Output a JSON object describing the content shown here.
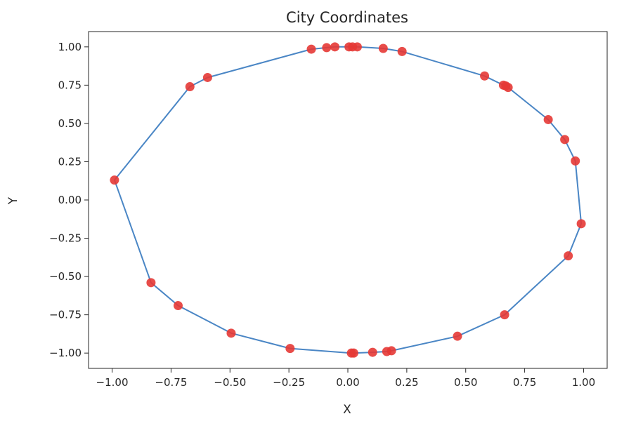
{
  "chart_data": {
    "type": "scatter",
    "title": "City Coordinates",
    "xlabel": "X",
    "ylabel": "Y",
    "xlim": [
      -1.1,
      1.1
    ],
    "ylim": [
      -1.1,
      1.1
    ],
    "xticks": [
      -1.0,
      -0.75,
      -0.5,
      -0.25,
      0.0,
      0.25,
      0.5,
      0.75,
      1.0
    ],
    "yticks": [
      -1.0,
      -0.75,
      -0.5,
      -0.25,
      0.0,
      0.25,
      0.5,
      0.75,
      1.0
    ],
    "xtick_labels": [
      "−1.00",
      "−0.75",
      "−0.50",
      "−0.25",
      "0.00",
      "0.25",
      "0.50",
      "0.75",
      "1.00"
    ],
    "ytick_labels": [
      "−1.00",
      "−0.75",
      "−0.50",
      "−0.25",
      "0.00",
      "0.25",
      "0.50",
      "0.75",
      "1.00"
    ],
    "grid": false,
    "legend": false,
    "point_color": "#e53935",
    "line_color": "#4a86c5",
    "cities": [
      {
        "x": 0.02,
        "y": 1.0
      },
      {
        "x": 0.04,
        "y": 1.0
      },
      {
        "x": 0.15,
        "y": 0.99
      },
      {
        "x": 0.23,
        "y": 0.97
      },
      {
        "x": 0.58,
        "y": 0.81
      },
      {
        "x": 0.66,
        "y": 0.75
      },
      {
        "x": 0.67,
        "y": 0.745
      },
      {
        "x": 0.68,
        "y": 0.735
      },
      {
        "x": 0.85,
        "y": 0.525
      },
      {
        "x": 0.92,
        "y": 0.395
      },
      {
        "x": 0.965,
        "y": 0.255
      },
      {
        "x": 0.99,
        "y": -0.155
      },
      {
        "x": 0.935,
        "y": -0.365
      },
      {
        "x": 0.665,
        "y": -0.75
      },
      {
        "x": 0.465,
        "y": -0.89
      },
      {
        "x": 0.185,
        "y": -0.985
      },
      {
        "x": 0.165,
        "y": -0.99
      },
      {
        "x": 0.105,
        "y": -0.995
      },
      {
        "x": 0.025,
        "y": -1.0
      },
      {
        "x": 0.015,
        "y": -1.0
      },
      {
        "x": -0.245,
        "y": -0.97
      },
      {
        "x": -0.495,
        "y": -0.87
      },
      {
        "x": -0.72,
        "y": -0.69
      },
      {
        "x": -0.835,
        "y": -0.54
      },
      {
        "x": -0.99,
        "y": 0.13
      },
      {
        "x": -0.67,
        "y": 0.74
      },
      {
        "x": -0.595,
        "y": 0.8
      },
      {
        "x": -0.155,
        "y": 0.985
      },
      {
        "x": -0.09,
        "y": 0.995
      },
      {
        "x": -0.055,
        "y": 1.0
      },
      {
        "x": 0.005,
        "y": 1.0
      }
    ]
  }
}
